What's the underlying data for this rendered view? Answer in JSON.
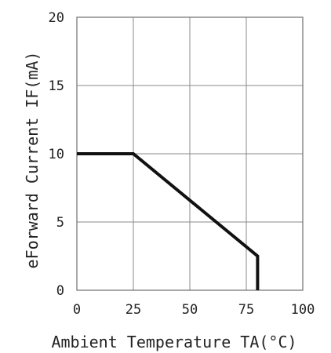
{
  "chart_data": {
    "type": "line",
    "title": "",
    "xlabel": "Ambient Temperature TA(°C)",
    "ylabel": "eForward Current IF(mA)",
    "xlim": [
      0,
      100
    ],
    "ylim": [
      0,
      20
    ],
    "x_ticks": [
      0,
      25,
      50,
      75,
      100
    ],
    "y_ticks": [
      0,
      5,
      10,
      15,
      20
    ],
    "x_tick_labels": [
      "0",
      "25",
      "50",
      "75",
      "100"
    ],
    "y_tick_labels": [
      "0",
      "5",
      "10",
      "15",
      "20"
    ],
    "grid": true,
    "series": [
      {
        "x": [
          0,
          25,
          80,
          80
        ],
        "y": [
          10,
          10,
          2.5,
          0
        ]
      }
    ],
    "colors": {
      "line": "#111111",
      "grid": "#8a8a8a",
      "text": "#222222"
    }
  }
}
